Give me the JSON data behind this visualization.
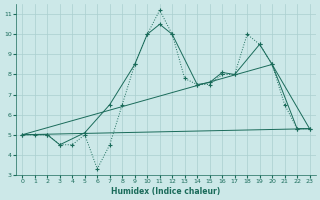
{
  "xlabel": "Humidex (Indice chaleur)",
  "background_color": "#cce8e8",
  "grid_color": "#aacfcf",
  "line_color": "#1a6b5a",
  "xlim": [
    -0.5,
    23.5
  ],
  "ylim": [
    3,
    11.5
  ],
  "xticks": [
    0,
    1,
    2,
    3,
    4,
    5,
    6,
    7,
    8,
    9,
    10,
    11,
    12,
    13,
    14,
    15,
    16,
    17,
    18,
    19,
    20,
    21,
    22,
    23
  ],
  "yticks": [
    3,
    4,
    5,
    6,
    7,
    8,
    9,
    10,
    11
  ],
  "line_jagged_x": [
    0,
    1,
    2,
    3,
    4,
    5,
    6,
    7,
    8,
    9,
    10,
    11,
    12,
    13,
    14,
    15,
    16,
    17,
    18,
    19,
    20,
    21,
    22,
    23
  ],
  "line_jagged_y": [
    5.0,
    5.0,
    5.0,
    4.5,
    4.5,
    5.0,
    3.3,
    4.5,
    6.5,
    8.5,
    10.0,
    11.2,
    10.0,
    7.8,
    7.5,
    7.5,
    8.0,
    8.0,
    10.0,
    9.5,
    8.5,
    6.5,
    5.3,
    5.3
  ],
  "line_smooth_x": [
    0,
    2,
    3,
    5,
    7,
    9,
    10,
    11,
    12,
    14,
    15,
    16,
    17,
    19,
    20,
    22,
    23
  ],
  "line_smooth_y": [
    5.0,
    5.0,
    4.5,
    5.1,
    6.5,
    8.5,
    10.0,
    10.5,
    10.0,
    7.5,
    7.6,
    8.1,
    8.0,
    9.5,
    8.5,
    5.3,
    5.3
  ],
  "line_trend1_x": [
    0,
    23
  ],
  "line_trend1_y": [
    5.0,
    5.3
  ],
  "line_trend2_x": [
    0,
    20,
    23
  ],
  "line_trend2_y": [
    5.0,
    8.5,
    5.3
  ]
}
